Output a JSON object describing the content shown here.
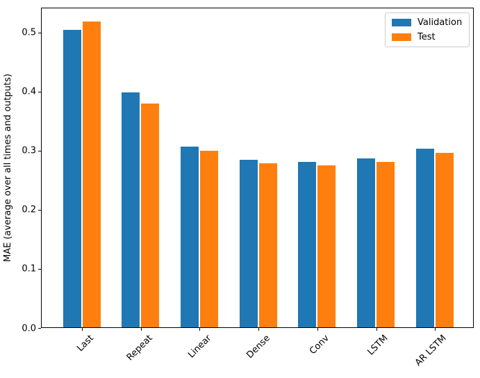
{
  "figure": {
    "background": "#ffffff",
    "axis_color": "#000000"
  },
  "chart_data": {
    "type": "bar",
    "title": "",
    "xlabel": "",
    "ylabel": "MAE (average over all times and outputs)",
    "categories": [
      "Last",
      "Repeat",
      "Linear",
      "Dense",
      "Conv",
      "LSTM",
      "AR LSTM"
    ],
    "series": [
      {
        "name": "Validation",
        "color": "#1f77b4",
        "values": [
          0.503,
          0.397,
          0.306,
          0.283,
          0.28,
          0.286,
          0.302
        ]
      },
      {
        "name": "Test",
        "color": "#ff7f0e",
        "values": [
          0.517,
          0.378,
          0.299,
          0.277,
          0.274,
          0.28,
          0.295
        ]
      }
    ],
    "ylim": [
      0,
      0.542
    ],
    "yticks": {
      "values": [
        0.0,
        0.1,
        0.2,
        0.3,
        0.4,
        0.5
      ],
      "labels": [
        "0.0",
        "0.1",
        "0.2",
        "0.3",
        "0.4",
        "0.5"
      ]
    },
    "xtick_rotation": 45,
    "grid": false,
    "legend": {
      "position": "upper right"
    }
  }
}
